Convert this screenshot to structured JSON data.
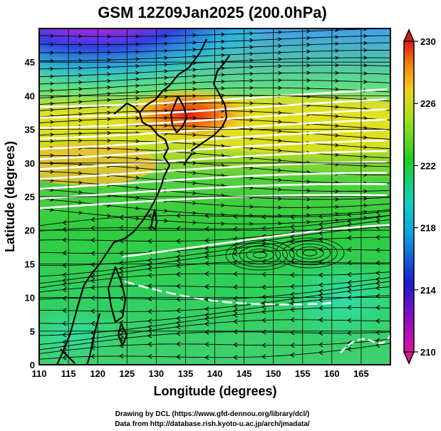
{
  "title": "GSM 12Z09Jan2025 (200.0hPa)",
  "xlabel": "Longitude (degrees)",
  "ylabel": "Latitude  (degrees)",
  "x_ticks": [
    "110",
    "115",
    "120",
    "125",
    "130",
    "135",
    "140",
    "145",
    "150",
    "155",
    "160",
    "165"
  ],
  "y_ticks": [
    "0",
    "5",
    "10",
    "15",
    "20",
    "25",
    "30",
    "35",
    "40",
    "45"
  ],
  "colorbar_ticks": [
    "230",
    "226",
    "222",
    "218",
    "214",
    "210"
  ],
  "credit_line1": "Drawing by DCL (https://www.gfd-dennou.org/library/dcl/)",
  "credit_line2": "Data from http://database.rish.kyoto-u.ac.jp/arch/jmadata/",
  "colors": {
    "magenta": "#e0107a",
    "blue": "#1a1acc",
    "cyan": "#10c8d8",
    "green": "#22cc22",
    "yellow": "#d8e020",
    "orange": "#f08a10",
    "red": "#d81818",
    "streamline": "#000000",
    "contour": "#ffffff"
  },
  "chart_data": {
    "type": "heatmap",
    "variable_range": [
      210,
      230
    ],
    "xlim": [
      110,
      170
    ],
    "ylim": [
      0,
      50
    ],
    "colorbar_values": [
      210,
      214,
      218,
      222,
      226,
      230
    ]
  }
}
